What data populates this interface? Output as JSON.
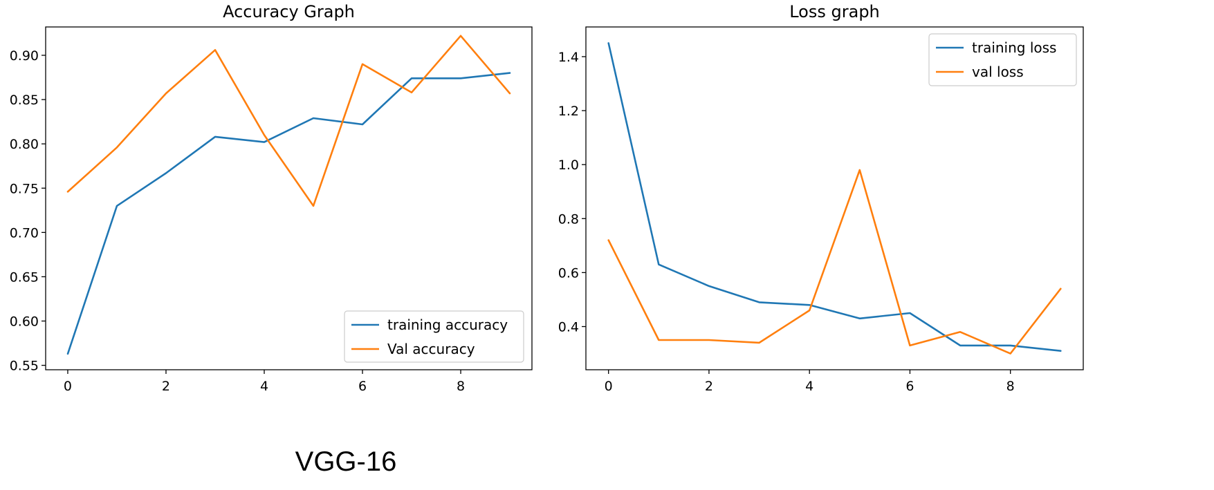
{
  "figure_caption": "VGG-16",
  "colors": {
    "series1": "#1f77b4",
    "series2": "#ff7f0e",
    "axes": "#000000",
    "legend_border": "#cccccc"
  },
  "chart_data": [
    {
      "type": "line",
      "title": "Accuracy Graph",
      "xlabel": "",
      "ylabel": "",
      "xlim": [
        -0.45,
        9.45
      ],
      "ylim": [
        0.545,
        0.932
      ],
      "xticks": [
        0,
        2,
        4,
        6,
        8
      ],
      "yticks": [
        0.55,
        0.6,
        0.65,
        0.7,
        0.75,
        0.8,
        0.85,
        0.9
      ],
      "ytick_labels": [
        "0.55",
        "0.60",
        "0.65",
        "0.70",
        "0.75",
        "0.80",
        "0.85",
        "0.90"
      ],
      "legend_position": "lower-right",
      "x": [
        0,
        1,
        2,
        3,
        4,
        5,
        6,
        7,
        8,
        9
      ],
      "series": [
        {
          "name": "training accuracy",
          "color": "#1f77b4",
          "values": [
            0.563,
            0.73,
            0.767,
            0.808,
            0.802,
            0.829,
            0.822,
            0.874,
            0.874,
            0.88
          ]
        },
        {
          "name": "Val accuracy",
          "color": "#ff7f0e",
          "values": [
            0.746,
            0.796,
            0.857,
            0.906,
            0.81,
            0.73,
            0.89,
            0.858,
            0.922,
            0.857
          ]
        }
      ]
    },
    {
      "type": "line",
      "title": "Loss graph",
      "xlabel": "",
      "ylabel": "",
      "xlim": [
        -0.45,
        9.45
      ],
      "ylim": [
        0.24,
        1.51
      ],
      "xticks": [
        0,
        2,
        4,
        6,
        8
      ],
      "yticks": [
        0.4,
        0.6,
        0.8,
        1.0,
        1.2,
        1.4
      ],
      "ytick_labels": [
        "0.4",
        "0.6",
        "0.8",
        "1.0",
        "1.2",
        "1.4"
      ],
      "legend_position": "upper-right",
      "x": [
        0,
        1,
        2,
        3,
        4,
        5,
        6,
        7,
        8,
        9
      ],
      "series": [
        {
          "name": "training loss",
          "color": "#1f77b4",
          "values": [
            1.45,
            0.63,
            0.55,
            0.49,
            0.48,
            0.43,
            0.45,
            0.33,
            0.33,
            0.31
          ]
        },
        {
          "name": "val loss",
          "color": "#ff7f0e",
          "values": [
            0.72,
            0.35,
            0.35,
            0.34,
            0.46,
            0.98,
            0.33,
            0.38,
            0.3,
            0.54
          ]
        }
      ]
    }
  ]
}
